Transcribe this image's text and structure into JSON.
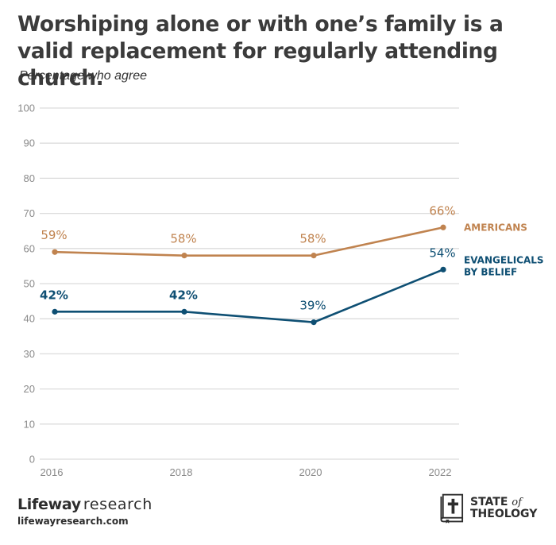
{
  "chart_data": {
    "type": "line",
    "title": "Worshiping alone or with one’s family is a valid replacement for regularly attending church.",
    "subtitle": "Percentage who agree",
    "xlabel": "",
    "ylabel": "",
    "categories": [
      "2016",
      "2018",
      "2020",
      "2022"
    ],
    "ylim": [
      0,
      100
    ],
    "yticks": [
      "0",
      "10",
      "20",
      "30",
      "40",
      "50",
      "60",
      "70",
      "80",
      "90",
      "100"
    ],
    "grid": true,
    "legend_placement": "right (inline labels at line ends)",
    "series": [
      {
        "name": "AMERICANS",
        "name_lines": [
          "AMERICANS"
        ],
        "color": "#c0834f",
        "values": [
          59,
          58,
          58,
          66
        ],
        "labels": [
          "59%",
          "58%",
          "58%",
          "66%"
        ]
      },
      {
        "name": "EVANGELICALS BY BELIEF",
        "name_lines": [
          "EVANGELICALS",
          "BY BELIEF"
        ],
        "color": "#0e4f73",
        "values": [
          42,
          42,
          39,
          54
        ],
        "labels": [
          "42%",
          "42%",
          "39%",
          "54%"
        ]
      }
    ]
  },
  "footer": {
    "brand_bold": "Lifeway",
    "brand_regular": "research",
    "url": "lifewayresearch.com",
    "logo_line1": "STATE",
    "logo_of": "of",
    "logo_line2": "THEOLOGY"
  },
  "colors": {
    "grid": "#dcdcdc",
    "tick_text": "#8a8a8a",
    "title": "#3b3b3b"
  }
}
